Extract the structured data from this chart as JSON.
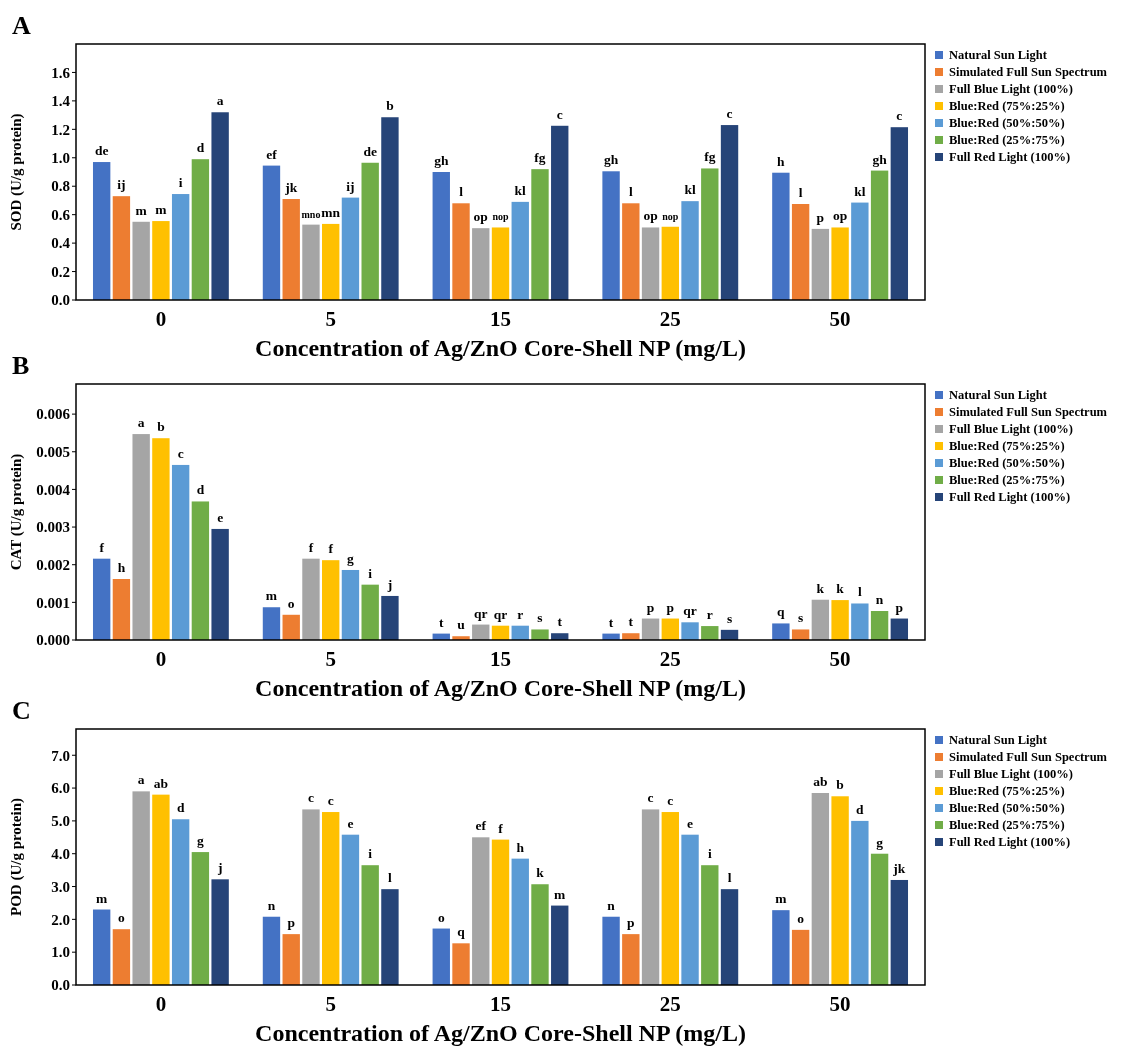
{
  "chart_data": [
    {
      "type": "bar",
      "title": "A",
      "xlabel": "Concentration of Ag/ZnO Core-Shell NP (mg/L)",
      "ylabel": "SOD (U/g protein)",
      "categories": [
        "0",
        "5",
        "15",
        "25",
        "50"
      ],
      "ylim": [
        0,
        1.8
      ],
      "yticks": [
        {
          "value": 0,
          "label": "0.0"
        },
        {
          "value": 0.2,
          "label": "0.2"
        },
        {
          "value": 0.4,
          "label": "0.4"
        },
        {
          "value": 0.6,
          "label": "0.6"
        },
        {
          "value": 0.8,
          "label": "0.8"
        },
        {
          "value": 1,
          "label": "1.0"
        },
        {
          "value": 1.2,
          "label": "1.2"
        },
        {
          "value": 1.4,
          "label": "1.4"
        },
        {
          "value": 1.6,
          "label": "1.6"
        }
      ],
      "legend": "right",
      "grid": false,
      "series": [
        {
          "name": "Natural Sun Light",
          "color": "#4472c4",
          "values": [
            0.97,
            0.945,
            0.9,
            0.905,
            0.895
          ],
          "value_labels": [
            "de",
            "ef",
            "gh",
            "gh",
            "h"
          ]
        },
        {
          "name": "Simulated Full Sun Spectrum",
          "color": "#ed7d31",
          "values": [
            0.73,
            0.71,
            0.68,
            0.68,
            0.675
          ],
          "value_labels": [
            "ij",
            "jk",
            "l",
            "l",
            "l"
          ]
        },
        {
          "name": "Full Blue Light (100%)",
          "color": "#a5a5a5",
          "values": [
            0.55,
            0.53,
            0.505,
            0.51,
            0.5
          ],
          "value_labels": [
            "m",
            "mno",
            "op",
            "op",
            "p"
          ]
        },
        {
          "name": "Blue:Red (75%:25%)",
          "color": "#ffc000",
          "values": [
            0.555,
            0.535,
            0.51,
            0.515,
            0.51
          ],
          "value_labels": [
            "m",
            "mn",
            "nop",
            "nop",
            "op"
          ]
        },
        {
          "name": "Blue:Red (50%:50%)",
          "color": "#5b9bd5",
          "values": [
            0.745,
            0.72,
            0.69,
            0.695,
            0.685
          ],
          "value_labels": [
            "i",
            "ij",
            "kl",
            "kl",
            "kl"
          ]
        },
        {
          "name": "Blue:Red (25%:75%)",
          "color": "#70ad47",
          "values": [
            0.99,
            0.965,
            0.92,
            0.925,
            0.91
          ],
          "value_labels": [
            "d",
            "de",
            "fg",
            "fg",
            "gh"
          ]
        },
        {
          "name": "Full Red Light (100%)",
          "color": "#264478",
          "values": [
            1.32,
            1.285,
            1.225,
            1.23,
            1.215
          ],
          "value_labels": [
            "a",
            "b",
            "c",
            "c",
            "c"
          ]
        }
      ]
    },
    {
      "type": "bar",
      "title": "B",
      "xlabel": "Concentration of Ag/ZnO Core-Shell NP (mg/L)",
      "ylabel": "CAT (U/g protein)",
      "categories": [
        "0",
        "5",
        "15",
        "25",
        "50"
      ],
      "ylim": [
        0,
        0.0068
      ],
      "yticks": [
        {
          "value": 0,
          "label": "0.000"
        },
        {
          "value": 0.001,
          "label": "0.001"
        },
        {
          "value": 0.002,
          "label": "0.002"
        },
        {
          "value": 0.003,
          "label": "0.003"
        },
        {
          "value": 0.004,
          "label": "0.004"
        },
        {
          "value": 0.005,
          "label": "0.005"
        },
        {
          "value": 0.006,
          "label": "0.006"
        }
      ],
      "legend": "right",
      "grid": false,
      "series": [
        {
          "name": "Natural Sun Light",
          "color": "#4472c4",
          "values": [
            0.00216,
            0.00087,
            0.00017,
            0.00017,
            0.00044
          ],
          "value_labels": [
            "f",
            "m",
            "t",
            "t",
            "q"
          ]
        },
        {
          "name": "Simulated Full Sun Spectrum",
          "color": "#ed7d31",
          "values": [
            0.00162,
            0.00067,
            0.0001,
            0.00018,
            0.00028
          ],
          "value_labels": [
            "h",
            "o",
            "u",
            "t",
            "s"
          ]
        },
        {
          "name": "Full Blue Light (100%)",
          "color": "#a5a5a5",
          "values": [
            0.00547,
            0.00216,
            0.00041,
            0.00057,
            0.00107
          ],
          "value_labels": [
            "a",
            "f",
            "qr",
            "p",
            "k"
          ]
        },
        {
          "name": "Blue:Red (75%:25%)",
          "color": "#ffc000",
          "values": [
            0.00536,
            0.00212,
            0.00038,
            0.00057,
            0.00106
          ],
          "value_labels": [
            "b",
            "f",
            "qr",
            "p",
            "k"
          ]
        },
        {
          "name": "Blue:Red (50%:50%)",
          "color": "#5b9bd5",
          "values": [
            0.00465,
            0.00186,
            0.00038,
            0.00047,
            0.00097
          ],
          "value_labels": [
            "c",
            "g",
            "r",
            "qr",
            "l"
          ]
        },
        {
          "name": "Blue:Red (25%:75%)",
          "color": "#70ad47",
          "values": [
            0.00368,
            0.00147,
            0.00028,
            0.00037,
            0.00077
          ],
          "value_labels": [
            "d",
            "i",
            "s",
            "r",
            "n"
          ]
        },
        {
          "name": "Full Red Light (100%)",
          "color": "#264478",
          "values": [
            0.00295,
            0.00117,
            0.00018,
            0.00027,
            0.00057
          ],
          "value_labels": [
            "e",
            "j",
            "t",
            "s",
            "p"
          ]
        }
      ]
    },
    {
      "type": "bar",
      "title": "C",
      "xlabel": "Concentration of Ag/ZnO Core-Shell NP (mg/L)",
      "ylabel": "POD (U/g protein)",
      "categories": [
        "0",
        "5",
        "15",
        "25",
        "50"
      ],
      "ylim": [
        0,
        7.8
      ],
      "yticks": [
        {
          "value": 0,
          "label": "0.0"
        },
        {
          "value": 1,
          "label": "1.0"
        },
        {
          "value": 2,
          "label": "2.0"
        },
        {
          "value": 3,
          "label": "3.0"
        },
        {
          "value": 4,
          "label": "4.0"
        },
        {
          "value": 5,
          "label": "5.0"
        },
        {
          "value": 6,
          "label": "6.0"
        },
        {
          "value": 7,
          "label": "7.0"
        }
      ],
      "legend": "right",
      "grid": false,
      "series": [
        {
          "name": "Natural Sun Light",
          "color": "#4472c4",
          "values": [
            2.3,
            2.08,
            1.72,
            2.08,
            2.28
          ],
          "value_labels": [
            "m",
            "n",
            "o",
            "n",
            "m"
          ]
        },
        {
          "name": "Simulated Full Sun Spectrum",
          "color": "#ed7d31",
          "values": [
            1.7,
            1.55,
            1.27,
            1.55,
            1.68
          ],
          "value_labels": [
            "o",
            "p",
            "q",
            "p",
            "o"
          ]
        },
        {
          "name": "Full Blue Light (100%)",
          "color": "#a5a5a5",
          "values": [
            5.9,
            5.35,
            4.5,
            5.35,
            5.85
          ],
          "value_labels": [
            "a",
            "c",
            "ef",
            "c",
            "ab"
          ]
        },
        {
          "name": "Blue:Red (75%:25%)",
          "color": "#ffc000",
          "values": [
            5.8,
            5.27,
            4.43,
            5.27,
            5.75
          ],
          "value_labels": [
            "ab",
            "c",
            "f",
            "c",
            "b"
          ]
        },
        {
          "name": "Blue:Red (50%:50%)",
          "color": "#5b9bd5",
          "values": [
            5.05,
            4.58,
            3.85,
            4.58,
            5.0
          ],
          "value_labels": [
            "d",
            "e",
            "h",
            "e",
            "d"
          ]
        },
        {
          "name": "Blue:Red (25%:75%)",
          "color": "#70ad47",
          "values": [
            4.05,
            3.65,
            3.07,
            3.65,
            4.0
          ],
          "value_labels": [
            "g",
            "i",
            "k",
            "i",
            "g"
          ]
        },
        {
          "name": "Full Red Light (100%)",
          "color": "#264478",
          "values": [
            3.22,
            2.92,
            2.42,
            2.92,
            3.2
          ],
          "value_labels": [
            "j",
            "l",
            "m",
            "l",
            "jk"
          ]
        }
      ]
    }
  ]
}
